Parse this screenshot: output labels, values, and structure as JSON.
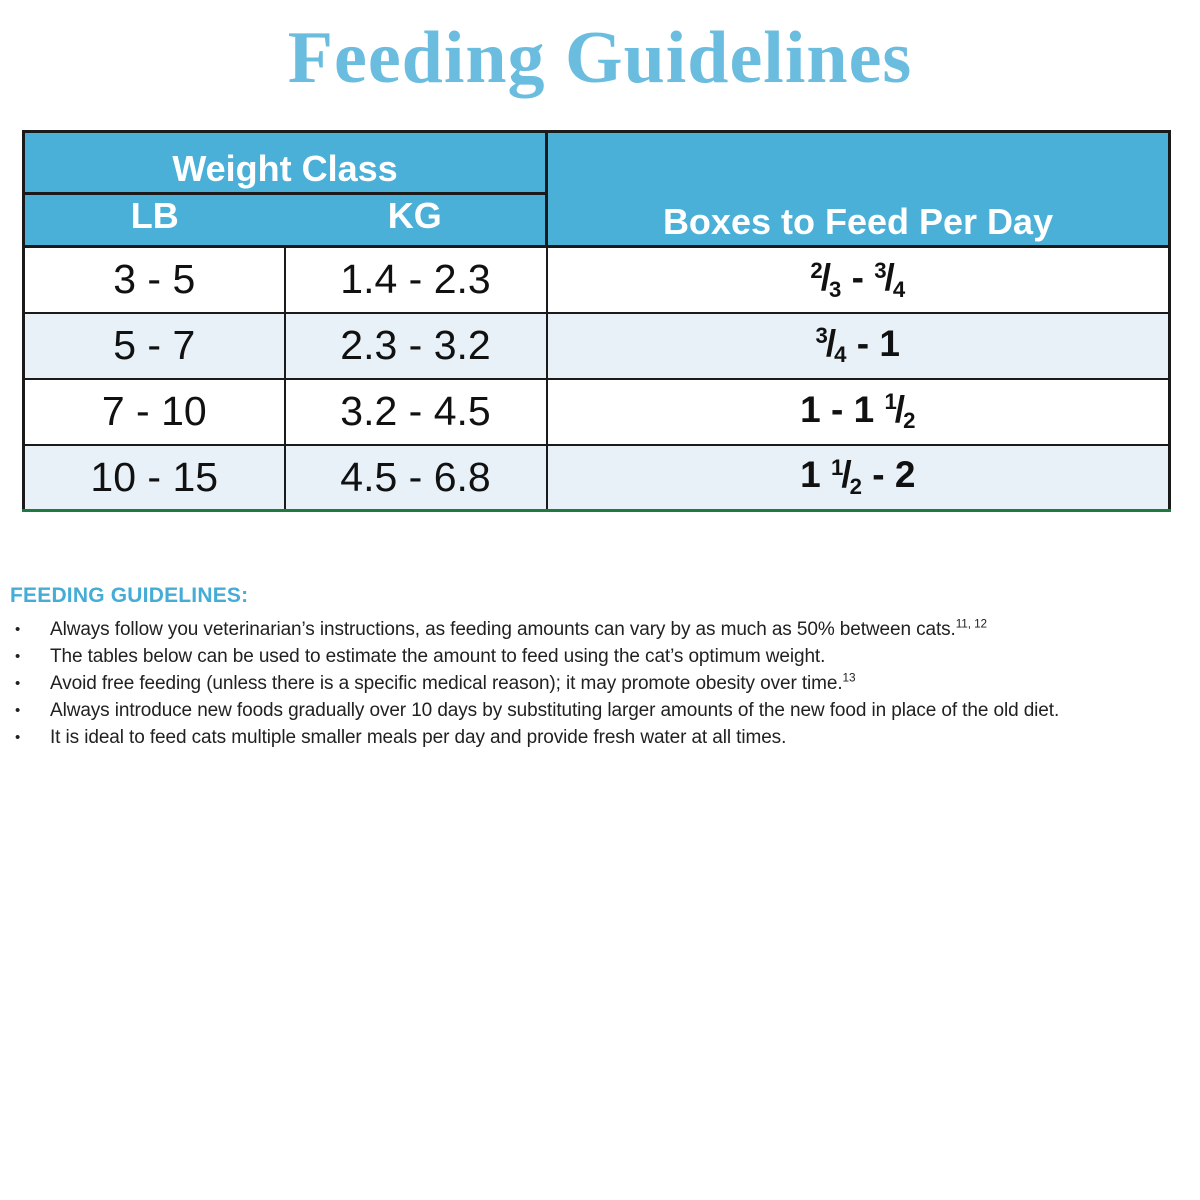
{
  "page": {
    "title": "Feeding Guidelines"
  },
  "colors": {
    "title_blue": "#6bbddf",
    "header_bg": "#4bb0d8",
    "row_alt_bg": "#e8f1f8",
    "border_dark": "#1a1a1a",
    "border_green": "#1d7a43",
    "heading_blue": "#45acd6",
    "text_dark": "#212121"
  },
  "table": {
    "header": {
      "group": "Weight Class",
      "lb": "LB",
      "kg": "KG",
      "boxes": "Boxes to Feed Per Day"
    },
    "rows": [
      {
        "lb": "3 - 5",
        "kg": "1.4 - 2.3",
        "boxes": [
          {
            "num": "2",
            "den": "3"
          },
          " - ",
          {
            "num": "3",
            "den": "4"
          }
        ]
      },
      {
        "lb": "5 - 7",
        "kg": "2.3 - 3.2",
        "boxes": [
          {
            "num": "3",
            "den": "4"
          },
          " - 1"
        ]
      },
      {
        "lb": "7 - 10",
        "kg": "3.2 - 4.5",
        "boxes": [
          "1 - 1 ",
          {
            "num": "1",
            "den": "2"
          }
        ]
      },
      {
        "lb": "10 - 15",
        "kg": "4.5 - 6.8",
        "boxes": [
          "1 ",
          {
            "num": "1",
            "den": "2"
          },
          " - 2"
        ]
      }
    ]
  },
  "guidelines": {
    "heading": "FEEDING GUIDELINES:",
    "bullets": [
      {
        "text": "Always follow you veterinarian’s instructions, as feeding amounts can vary by as much as 50% between cats.",
        "note": "11, 12"
      },
      {
        "text": "The tables below can be used to estimate the amount to feed using the cat’s optimum weight.",
        "note": ""
      },
      {
        "text": "Avoid free feeding (unless there is a specific medical reason); it may promote obesity over time.",
        "note": "13"
      },
      {
        "text": "Always introduce new foods gradually over 10 days by substituting larger amounts of the new food in place of the old diet.",
        "note": ""
      },
      {
        "text": "It is ideal to feed cats multiple smaller meals per day and provide fresh water at all times.",
        "note": ""
      }
    ]
  }
}
